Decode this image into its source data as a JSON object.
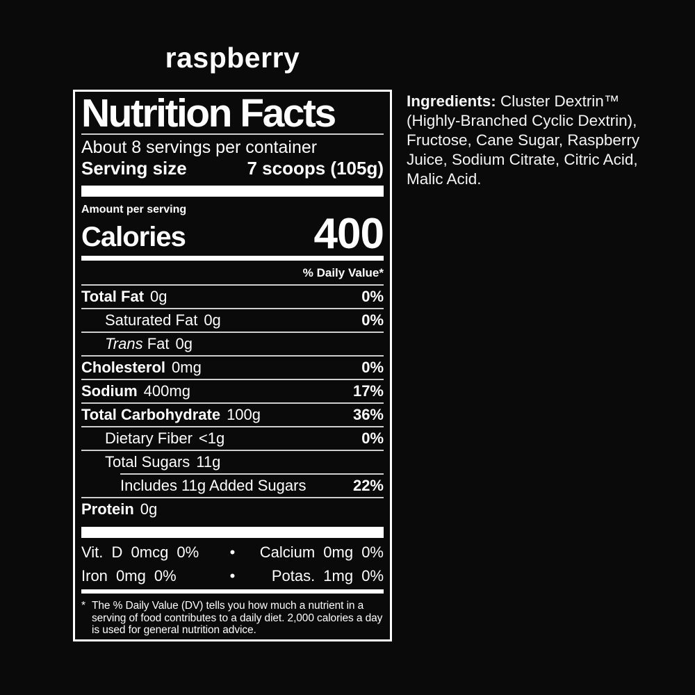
{
  "flavor_title": "raspberry",
  "nutrition_label": {
    "title": "Nutrition Facts",
    "servings_line": "About 8 servings per container",
    "serving_size": {
      "label": "Serving size",
      "value": "7 scoops (105g)"
    },
    "amount_per_serving_label": "Amount per serving",
    "calories": {
      "label": "Calories",
      "value": "400"
    },
    "daily_value_header": "% Daily Value*",
    "nutrients": [
      {
        "name": "Total Fat",
        "amount": "0g",
        "daily_value": "0%"
      },
      {
        "name": "Saturated Fat",
        "amount": "0g",
        "daily_value": "0%"
      },
      {
        "name_italic": "Trans",
        "name": "Fat",
        "amount": "0g",
        "daily_value": ""
      },
      {
        "name": "Cholesterol",
        "amount": "0mg",
        "daily_value": "0%"
      },
      {
        "name": "Sodium",
        "amount": "400mg",
        "daily_value": "17%"
      },
      {
        "name": "Total Carbohydrate",
        "amount": "100g",
        "daily_value": "36%"
      },
      {
        "name": "Dietary Fiber",
        "amount": "<1g",
        "daily_value": "0%"
      },
      {
        "name": "Total Sugars",
        "amount": "11g",
        "daily_value": ""
      },
      {
        "name": "Includes 11g Added Sugars",
        "amount": "",
        "daily_value": "22%"
      },
      {
        "name": "Protein",
        "amount": "0g",
        "daily_value": ""
      }
    ],
    "micronutrients": [
      {
        "left": "Vit. D 0mcg 0%",
        "separator": "•",
        "right": "Calcium 0mg 0%"
      },
      {
        "left": "Iron 0mg 0%",
        "separator": "•",
        "right": "Potas. 1mg 0%"
      }
    ],
    "footnote_marker": "*",
    "footnote": "The % Daily Value (DV) tells you how much a nutrient in a serving of food contributes to a daily diet. 2,000 calories a day is used for general nutrition advice."
  },
  "ingredients": {
    "label": "Ingredients:",
    "text": "Cluster Dextrin™ (Highly-Branched Cyclic Dextrin), Fructose, Cane Sugar, Raspberry Juice, Sodium Citrate, Citric Acid, Malic Acid."
  },
  "colors": {
    "background": "#0a0a0a",
    "text": "#ffffff",
    "rule": "#cfcfcf"
  }
}
